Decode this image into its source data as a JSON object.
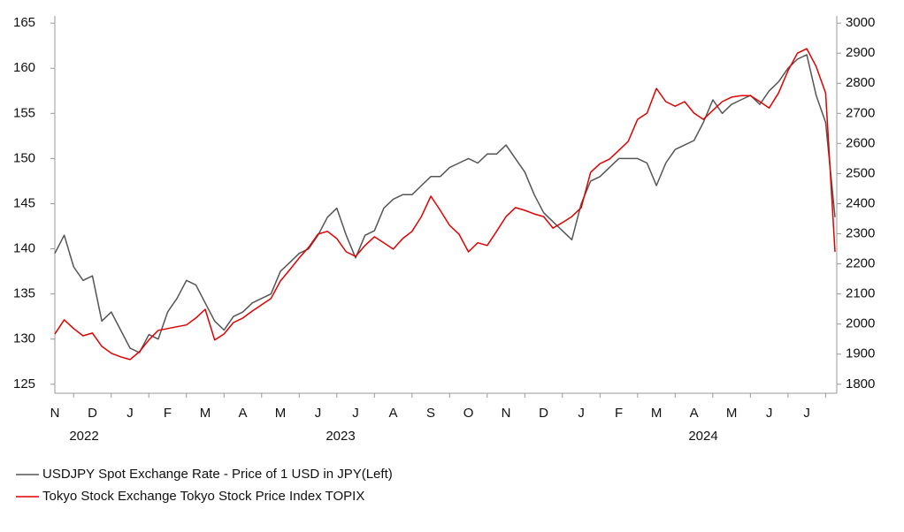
{
  "chart_data": {
    "type": "line",
    "categories": [
      "N",
      null,
      null,
      null,
      "D",
      null,
      null,
      null,
      "J",
      null,
      null,
      null,
      "F",
      null,
      null,
      null,
      "M",
      null,
      null,
      null,
      "A",
      null,
      null,
      null,
      "M",
      null,
      null,
      null,
      "J",
      null,
      null,
      null,
      "J",
      null,
      null,
      null,
      "A",
      null,
      null,
      null,
      "S",
      null,
      null,
      null,
      "O",
      null,
      null,
      null,
      "N",
      null,
      null,
      null,
      "D",
      null,
      null,
      null,
      "J",
      null,
      null,
      null,
      "F",
      null,
      null,
      null,
      "M",
      null,
      null,
      null,
      "A",
      null,
      null,
      null,
      "M",
      null,
      null,
      null,
      "J",
      null,
      null,
      null,
      "J",
      null,
      null,
      null
    ],
    "year_labels": [
      "2022",
      "2023",
      "2024"
    ],
    "series": [
      {
        "name": "USDJPY Spot Exchange Rate - Price of 1 USD in JPY(Left)",
        "color": "#555555",
        "values": [
          139.5,
          141.5,
          138,
          136.5,
          137,
          132,
          133,
          131,
          129,
          128.5,
          130.5,
          130,
          133,
          134.5,
          136.5,
          136,
          134,
          132,
          131,
          132.5,
          133,
          134,
          134.5,
          135,
          137.5,
          138.5,
          139.5,
          140,
          141.5,
          143.5,
          144.5,
          141.5,
          139,
          141.5,
          142,
          144.5,
          145.5,
          146,
          146,
          147,
          148,
          148,
          149,
          149.5,
          150,
          149.5,
          150.5,
          150.5,
          151.5,
          150,
          148.5,
          146,
          144,
          143,
          142,
          141,
          145,
          147.5,
          148,
          149,
          150,
          150,
          150,
          149.5,
          147,
          149.5,
          151,
          151.5,
          152,
          154,
          156.5,
          155,
          156,
          156.5,
          157,
          156,
          157.5,
          158.5,
          160,
          161,
          161.5,
          157,
          154,
          143.5
        ]
      },
      {
        "name": "Tokyo Stock Exchange Tokyo Stock Price Index TOPIX",
        "color": "#e00000",
        "axis": "y2",
        "values": [
          1967,
          2014,
          1985,
          1961,
          1970,
          1926,
          1903,
          1891,
          1882,
          1908,
          1947,
          1979,
          1985,
          1991,
          1997,
          2020,
          2049,
          1947,
          1967,
          2005,
          2020,
          2043,
          2064,
          2085,
          2143,
          2181,
          2220,
          2255,
          2299,
          2308,
          2284,
          2240,
          2225,
          2261,
          2290,
          2270,
          2249,
          2284,
          2308,
          2357,
          2425,
          2378,
          2328,
          2299,
          2240,
          2270,
          2261,
          2308,
          2357,
          2387,
          2378,
          2366,
          2357,
          2319,
          2337,
          2357,
          2387,
          2504,
          2533,
          2548,
          2577,
          2607,
          2680,
          2701,
          2783,
          2739,
          2724,
          2739,
          2701,
          2680,
          2710,
          2739,
          2754,
          2759,
          2759,
          2739,
          2718,
          2768,
          2842,
          2900,
          2915,
          2856,
          2768,
          2240
        ]
      }
    ],
    "ylim": [
      124,
      165.8
    ],
    "yticks": [
      125,
      130,
      135,
      140,
      145,
      150,
      155,
      160,
      165
    ],
    "y2lim": [
      1770,
      3024
    ],
    "y2ticks": [
      1800,
      1900,
      2000,
      2100,
      2200,
      2300,
      2400,
      2500,
      2600,
      2700,
      2800,
      2900,
      3000
    ],
    "grid": false
  }
}
